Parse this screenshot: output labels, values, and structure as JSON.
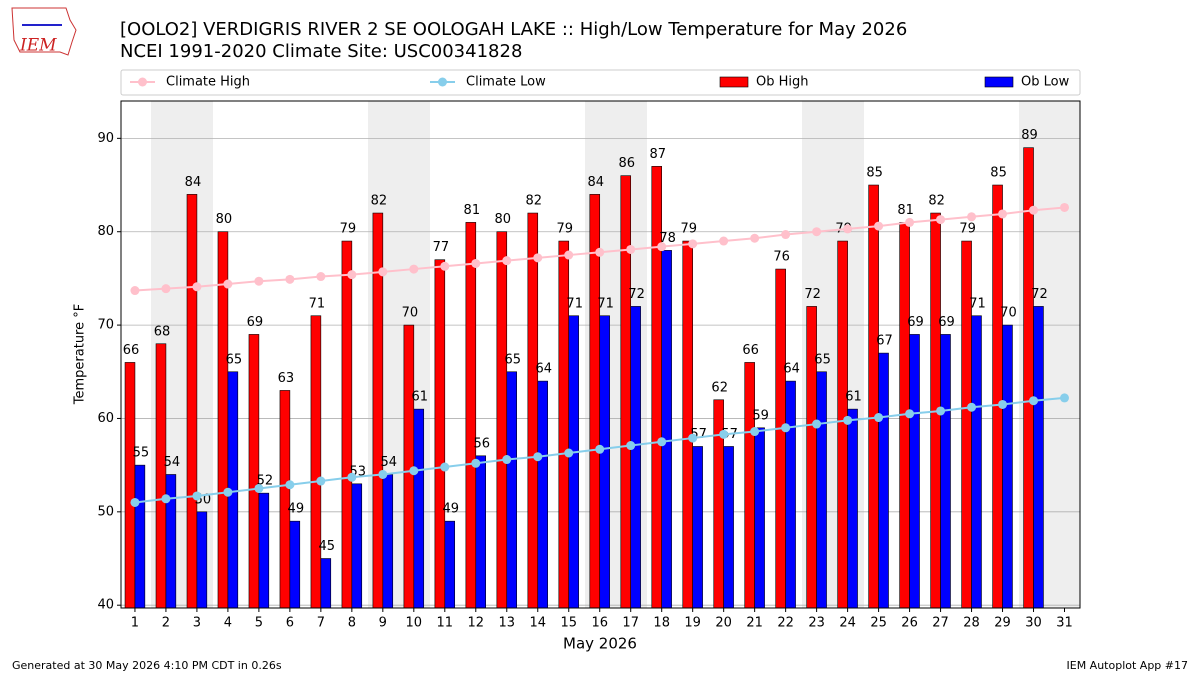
{
  "chart_data": {
    "type": "bar",
    "title": "[OOLO2] VERDIGRIS RIVER 2 SE OOLOGAH LAKE :: High/Low Temperature for May 2026",
    "subtitle": "NCEI 1991-2020 Climate Site: USC00341828",
    "xlabel": "May 2026",
    "ylabel": "Temperature °F",
    "footer_left": "Generated at 30 May 2026 4:10 PM CDT in 0.26s",
    "footer_right": "IEM Autoplot App #17",
    "logo": "IEM",
    "x": [
      1,
      2,
      3,
      4,
      5,
      6,
      7,
      8,
      9,
      10,
      11,
      12,
      13,
      14,
      15,
      16,
      17,
      18,
      19,
      20,
      21,
      22,
      23,
      24,
      25,
      26,
      27,
      28,
      29,
      30,
      31
    ],
    "xticks": [
      1,
      2,
      3,
      4,
      5,
      6,
      7,
      8,
      9,
      10,
      11,
      12,
      13,
      14,
      15,
      16,
      17,
      18,
      19,
      20,
      21,
      22,
      23,
      24,
      25,
      26,
      27,
      28,
      29,
      30,
      31
    ],
    "xlim": [
      0.55,
      31.5
    ],
    "ylim": [
      39.7,
      94
    ],
    "yticks": [
      40,
      50,
      60,
      70,
      80,
      90
    ],
    "grid": true,
    "series": [
      {
        "name": "Climate High",
        "type": "line",
        "color": "#ffc0cb",
        "values": [
          73.7,
          73.9,
          74.1,
          74.4,
          74.7,
          74.9,
          75.2,
          75.4,
          75.7,
          76.0,
          76.3,
          76.6,
          76.9,
          77.2,
          77.5,
          77.8,
          78.1,
          78.4,
          78.7,
          79.0,
          79.3,
          79.7,
          80.0,
          80.3,
          80.6,
          81.0,
          81.3,
          81.6,
          81.9,
          82.3,
          82.6
        ]
      },
      {
        "name": "Climate Low",
        "type": "line",
        "color": "#87ceeb",
        "values": [
          51.0,
          51.4,
          51.7,
          52.1,
          52.5,
          52.9,
          53.3,
          53.7,
          54.0,
          54.4,
          54.8,
          55.2,
          55.6,
          55.9,
          56.3,
          56.7,
          57.1,
          57.5,
          57.9,
          58.3,
          58.6,
          59.0,
          59.4,
          59.8,
          60.1,
          60.5,
          60.8,
          61.2,
          61.5,
          61.9,
          62.2
        ]
      },
      {
        "name": "Ob High",
        "type": "bar",
        "color": "#ff0000",
        "values": [
          66,
          68,
          84,
          80,
          69,
          63,
          71,
          79,
          82,
          70,
          77,
          81,
          80,
          82,
          79,
          84,
          86,
          87,
          79,
          62,
          66,
          76,
          72,
          79,
          85,
          81,
          82,
          79,
          85,
          89,
          null
        ]
      },
      {
        "name": "Ob Low",
        "type": "bar",
        "color": "#0000ff",
        "values": [
          55,
          54,
          50,
          65,
          52,
          49,
          45,
          53,
          54,
          61,
          49,
          56,
          65,
          64,
          71,
          71,
          72,
          78,
          57,
          57,
          59,
          64,
          65,
          61,
          67,
          69,
          69,
          71,
          70,
          72,
          null
        ]
      }
    ]
  }
}
